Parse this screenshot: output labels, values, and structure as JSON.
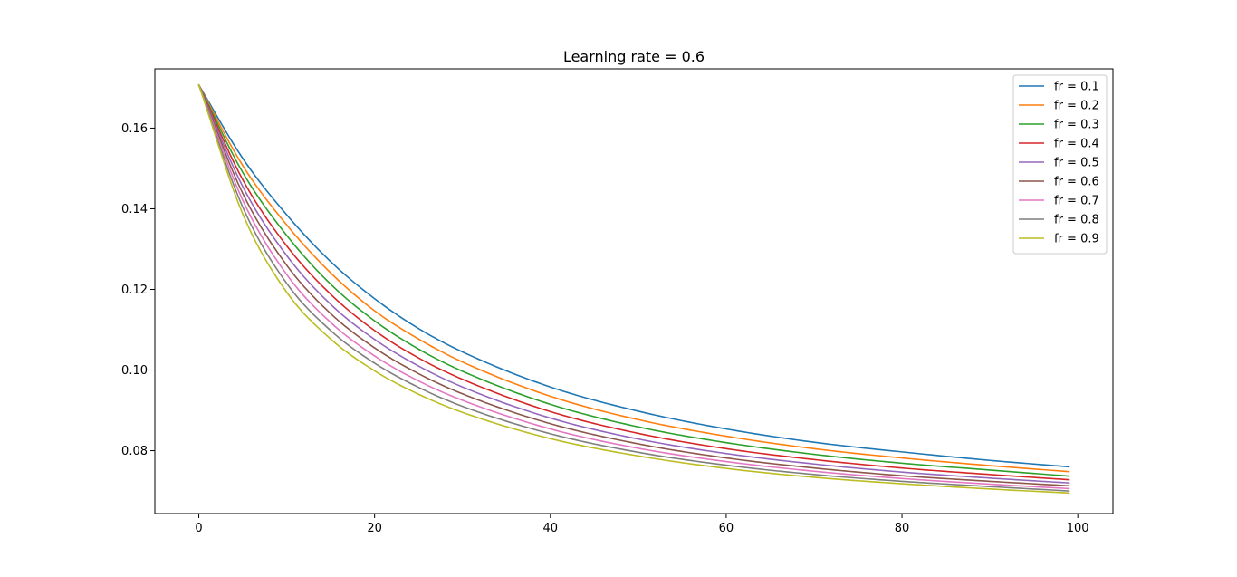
{
  "chart_data": {
    "type": "line",
    "title": "Learning rate = 0.6",
    "xlabel": "",
    "ylabel": "",
    "xlim": [
      -5,
      104
    ],
    "ylim": [
      0.0644,
      0.1747
    ],
    "x_ticks": [
      0,
      20,
      40,
      60,
      80,
      100
    ],
    "y_ticks": [
      0.08,
      0.1,
      0.12,
      0.14,
      0.16
    ],
    "x_tick_labels": [
      "0",
      "20",
      "40",
      "60",
      "80",
      "100"
    ],
    "y_tick_labels": [
      "0.08",
      "0.10",
      "0.12",
      "0.14",
      "0.16"
    ],
    "grid": false,
    "legend_position": "top-right",
    "x_range": [
      0,
      99
    ],
    "series": [
      {
        "name": "fr = 0.1",
        "color": "#1f77b4",
        "x": [
          0,
          5,
          10,
          15,
          20,
          25,
          30,
          40,
          50,
          60,
          70,
          80,
          90,
          99
        ],
        "y": [
          0.1707,
          0.1525,
          0.1385,
          0.1269,
          0.1177,
          0.1103,
          0.1045,
          0.0958,
          0.0898,
          0.0854,
          0.0821,
          0.0797,
          0.0776,
          0.076
        ]
      },
      {
        "name": "fr = 0.2",
        "color": "#ff7f0e",
        "x": [
          0,
          5,
          10,
          15,
          20,
          25,
          30,
          40,
          50,
          60,
          70,
          80,
          90,
          99
        ],
        "y": [
          0.1707,
          0.1507,
          0.136,
          0.1241,
          0.1147,
          0.1077,
          0.102,
          0.0935,
          0.0877,
          0.0836,
          0.0805,
          0.0782,
          0.0763,
          0.0748
        ]
      },
      {
        "name": "fr = 0.3",
        "color": "#2ca02c",
        "x": [
          0,
          5,
          10,
          15,
          20,
          25,
          30,
          40,
          50,
          60,
          70,
          80,
          90,
          99
        ],
        "y": [
          0.1707,
          0.149,
          0.1334,
          0.1213,
          0.1122,
          0.1052,
          0.0997,
          0.0915,
          0.0859,
          0.082,
          0.0791,
          0.0769,
          0.0752,
          0.0737
        ]
      },
      {
        "name": "fr = 0.4",
        "color": "#d62728",
        "x": [
          0,
          5,
          10,
          15,
          20,
          25,
          30,
          40,
          50,
          60,
          70,
          80,
          90,
          99
        ],
        "y": [
          0.1707,
          0.1472,
          0.1308,
          0.1188,
          0.1098,
          0.103,
          0.0977,
          0.0897,
          0.0843,
          0.0805,
          0.0778,
          0.0757,
          0.0741,
          0.0728
        ]
      },
      {
        "name": "fr = 0.5",
        "color": "#9467bd",
        "x": [
          0,
          5,
          10,
          15,
          20,
          25,
          30,
          40,
          50,
          60,
          70,
          80,
          90,
          99
        ],
        "y": [
          0.1707,
          0.1455,
          0.1284,
          0.1163,
          0.1076,
          0.101,
          0.0958,
          0.0881,
          0.0829,
          0.0793,
          0.0767,
          0.0747,
          0.0732,
          0.072
        ]
      },
      {
        "name": "fr = 0.6",
        "color": "#8c564b",
        "x": [
          0,
          5,
          10,
          15,
          20,
          25,
          30,
          40,
          50,
          60,
          70,
          80,
          90,
          99
        ],
        "y": [
          0.1707,
          0.1438,
          0.126,
          0.114,
          0.1055,
          0.0991,
          0.0941,
          0.0867,
          0.0817,
          0.0782,
          0.0757,
          0.0738,
          0.0724,
          0.0713
        ]
      },
      {
        "name": "fr = 0.7",
        "color": "#e377c2",
        "x": [
          0,
          5,
          10,
          15,
          20,
          25,
          30,
          40,
          50,
          60,
          70,
          80,
          90,
          99
        ],
        "y": [
          0.1707,
          0.1421,
          0.1237,
          0.1118,
          0.1035,
          0.0973,
          0.0925,
          0.0854,
          0.0806,
          0.0773,
          0.0749,
          0.0731,
          0.0717,
          0.0706
        ]
      },
      {
        "name": "fr = 0.8",
        "color": "#7f7f7f",
        "x": [
          0,
          5,
          10,
          15,
          20,
          25,
          30,
          40,
          50,
          60,
          70,
          80,
          90,
          99
        ],
        "y": [
          0.1707,
          0.1404,
          0.1215,
          0.1098,
          0.1017,
          0.0957,
          0.091,
          0.0842,
          0.0796,
          0.0764,
          0.0741,
          0.0724,
          0.0711,
          0.07
        ]
      },
      {
        "name": "fr = 0.9",
        "color": "#bcbd22",
        "x": [
          0,
          5,
          10,
          15,
          20,
          25,
          30,
          40,
          50,
          60,
          70,
          80,
          90,
          99
        ],
        "y": [
          0.1707,
          0.1387,
          0.1193,
          0.1077,
          0.0998,
          0.094,
          0.0895,
          0.083,
          0.0787,
          0.0756,
          0.0734,
          0.0718,
          0.0705,
          0.0695
        ]
      }
    ]
  }
}
